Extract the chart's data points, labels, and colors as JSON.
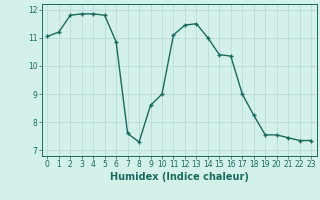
{
  "x": [
    0,
    1,
    2,
    3,
    4,
    5,
    6,
    7,
    8,
    9,
    10,
    11,
    12,
    13,
    14,
    15,
    16,
    17,
    18,
    19,
    20,
    21,
    22,
    23
  ],
  "y": [
    11.05,
    11.2,
    11.8,
    11.85,
    11.85,
    11.8,
    10.85,
    7.6,
    7.3,
    8.6,
    9.0,
    11.1,
    11.45,
    11.5,
    11.0,
    10.4,
    10.35,
    9.0,
    8.25,
    7.55,
    7.55,
    7.45,
    7.35,
    7.35
  ],
  "line_color": "#1a6b5e",
  "marker": "+",
  "background_color": "#d4f0eb",
  "grid_color": "#b8ddd6",
  "xlabel": "Humidex (Indice chaleur)",
  "ylim": [
    6.8,
    12.2
  ],
  "xlim": [
    -0.5,
    23.5
  ],
  "yticks": [
    7,
    8,
    9,
    10,
    11,
    12
  ],
  "xticks": [
    0,
    1,
    2,
    3,
    4,
    5,
    6,
    7,
    8,
    9,
    10,
    11,
    12,
    13,
    14,
    15,
    16,
    17,
    18,
    19,
    20,
    21,
    22,
    23
  ],
  "tick_fontsize": 5.5,
  "xlabel_fontsize": 7,
  "linewidth": 1.0,
  "markersize": 3.5
}
